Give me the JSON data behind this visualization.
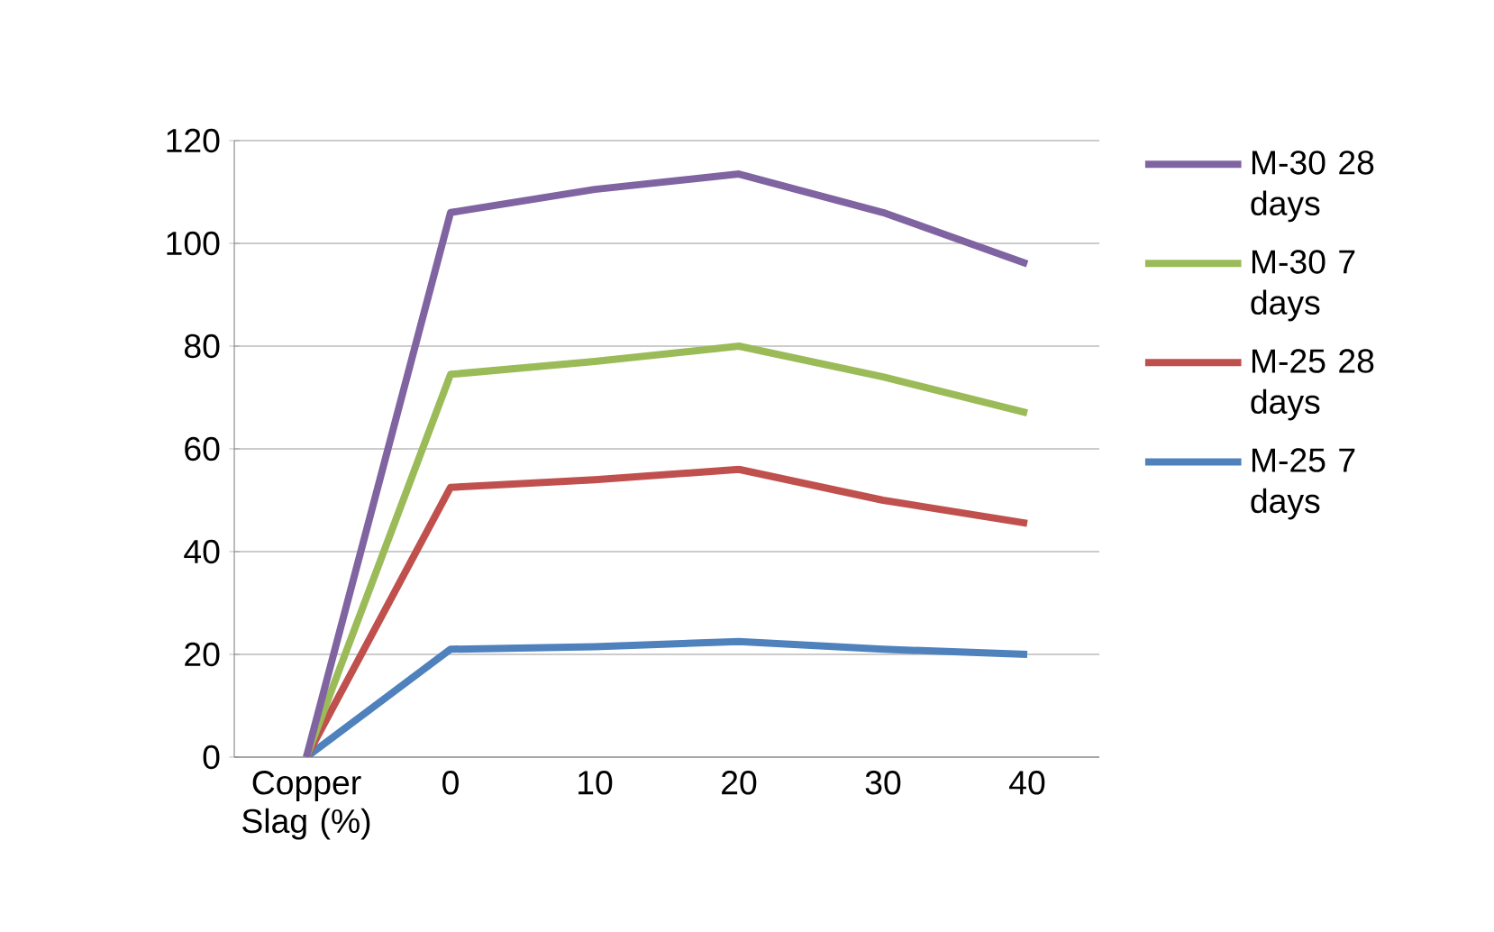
{
  "chart_data": {
    "type": "line",
    "categories": [
      "Copper Slag (%)",
      "0",
      "10",
      "20",
      "30",
      "40"
    ],
    "series": [
      {
        "name": "M-30 28 days",
        "color": "#8064a2",
        "values": [
          0,
          106,
          110.5,
          113.5,
          106,
          96
        ]
      },
      {
        "name": "M-30 7 days",
        "color": "#9bbb59",
        "values": [
          0,
          74.5,
          77,
          80,
          74,
          67
        ]
      },
      {
        "name": "M-25 28 days",
        "color": "#c0504d",
        "values": [
          0,
          52.5,
          54,
          56,
          50,
          45.5
        ]
      },
      {
        "name": "M-25 7 days",
        "color": "#4f81bd",
        "values": [
          0,
          21,
          21.5,
          22.5,
          21,
          20
        ]
      }
    ],
    "ylim": [
      0,
      120
    ],
    "yticks": [
      0,
      20,
      40,
      60,
      80,
      100,
      120
    ],
    "grid": "y",
    "legend": "right",
    "marker": "none",
    "line_style": "solid"
  }
}
